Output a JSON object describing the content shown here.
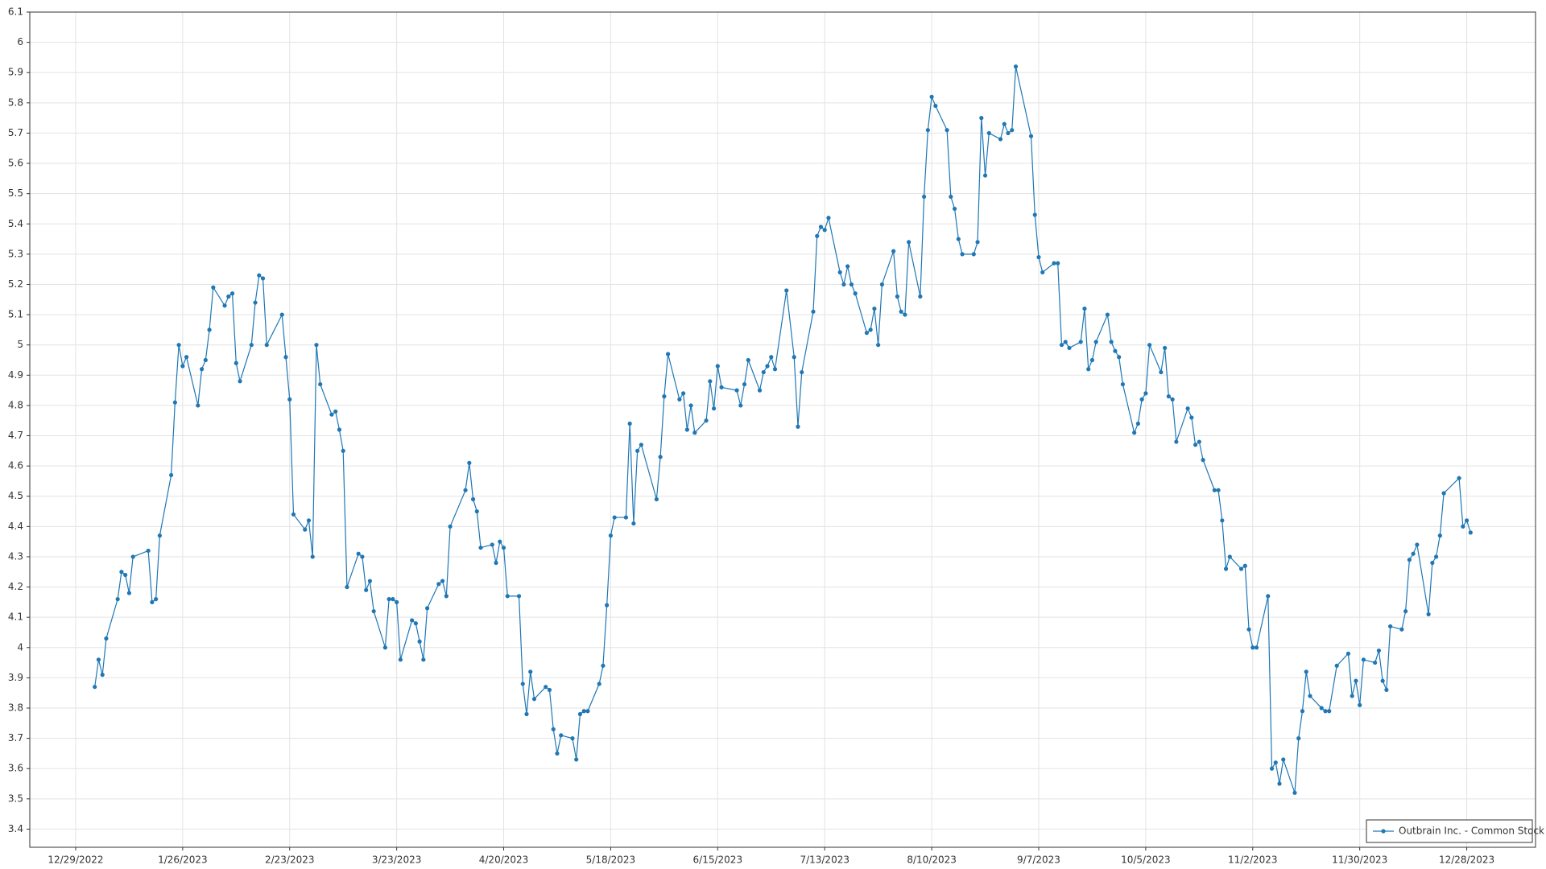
{
  "chart_data": {
    "type": "line",
    "x": [
      "2023-01-03",
      "2023-01-04",
      "2023-01-05",
      "2023-01-06",
      "2023-01-09",
      "2023-01-10",
      "2023-01-11",
      "2023-01-12",
      "2023-01-13",
      "2023-01-17",
      "2023-01-18",
      "2023-01-19",
      "2023-01-20",
      "2023-01-23",
      "2023-01-24",
      "2023-01-25",
      "2023-01-26",
      "2023-01-27",
      "2023-01-30",
      "2023-01-31",
      "2023-02-01",
      "2023-02-02",
      "2023-02-03",
      "2023-02-06",
      "2023-02-07",
      "2023-02-08",
      "2023-02-09",
      "2023-02-10",
      "2023-02-13",
      "2023-02-14",
      "2023-02-15",
      "2023-02-16",
      "2023-02-17",
      "2023-02-21",
      "2023-02-22",
      "2023-02-23",
      "2023-02-24",
      "2023-02-27",
      "2023-02-28",
      "2023-03-01",
      "2023-03-02",
      "2023-03-03",
      "2023-03-06",
      "2023-03-07",
      "2023-03-08",
      "2023-03-09",
      "2023-03-10",
      "2023-03-13",
      "2023-03-14",
      "2023-03-15",
      "2023-03-16",
      "2023-03-17",
      "2023-03-20",
      "2023-03-21",
      "2023-03-22",
      "2023-03-23",
      "2023-03-24",
      "2023-03-27",
      "2023-03-28",
      "2023-03-29",
      "2023-03-30",
      "2023-03-31",
      "2023-04-03",
      "2023-04-04",
      "2023-04-05",
      "2023-04-06",
      "2023-04-10",
      "2023-04-11",
      "2023-04-12",
      "2023-04-13",
      "2023-04-14",
      "2023-04-17",
      "2023-04-18",
      "2023-04-19",
      "2023-04-20",
      "2023-04-21",
      "2023-04-24",
      "2023-04-25",
      "2023-04-26",
      "2023-04-27",
      "2023-04-28",
      "2023-05-01",
      "2023-05-02",
      "2023-05-03",
      "2023-05-04",
      "2023-05-05",
      "2023-05-08",
      "2023-05-09",
      "2023-05-10",
      "2023-05-11",
      "2023-05-12",
      "2023-05-15",
      "2023-05-16",
      "2023-05-17",
      "2023-05-18",
      "2023-05-19",
      "2023-05-22",
      "2023-05-23",
      "2023-05-24",
      "2023-05-25",
      "2023-05-26",
      "2023-05-30",
      "2023-05-31",
      "2023-06-01",
      "2023-06-02",
      "2023-06-05",
      "2023-06-06",
      "2023-06-07",
      "2023-06-08",
      "2023-06-09",
      "2023-06-12",
      "2023-06-13",
      "2023-06-14",
      "2023-06-15",
      "2023-06-16",
      "2023-06-20",
      "2023-06-21",
      "2023-06-22",
      "2023-06-23",
      "2023-06-26",
      "2023-06-27",
      "2023-06-28",
      "2023-06-29",
      "2023-06-30",
      "2023-07-03",
      "2023-07-05",
      "2023-07-06",
      "2023-07-07",
      "2023-07-10",
      "2023-07-11",
      "2023-07-12",
      "2023-07-13",
      "2023-07-14",
      "2023-07-17",
      "2023-07-18",
      "2023-07-19",
      "2023-07-20",
      "2023-07-21",
      "2023-07-24",
      "2023-07-25",
      "2023-07-26",
      "2023-07-27",
      "2023-07-28",
      "2023-07-31",
      "2023-08-01",
      "2023-08-02",
      "2023-08-03",
      "2023-08-04",
      "2023-08-07",
      "2023-08-08",
      "2023-08-09",
      "2023-08-10",
      "2023-08-11",
      "2023-08-14",
      "2023-08-15",
      "2023-08-16",
      "2023-08-17",
      "2023-08-18",
      "2023-08-21",
      "2023-08-22",
      "2023-08-23",
      "2023-08-24",
      "2023-08-25",
      "2023-08-28",
      "2023-08-29",
      "2023-08-30",
      "2023-08-31",
      "2023-09-01",
      "2023-09-05",
      "2023-09-06",
      "2023-09-07",
      "2023-09-08",
      "2023-09-11",
      "2023-09-12",
      "2023-09-13",
      "2023-09-14",
      "2023-09-15",
      "2023-09-18",
      "2023-09-19",
      "2023-09-20",
      "2023-09-21",
      "2023-09-22",
      "2023-09-25",
      "2023-09-26",
      "2023-09-27",
      "2023-09-28",
      "2023-09-29",
      "2023-10-02",
      "2023-10-03",
      "2023-10-04",
      "2023-10-05",
      "2023-10-06",
      "2023-10-09",
      "2023-10-10",
      "2023-10-11",
      "2023-10-12",
      "2023-10-13",
      "2023-10-16",
      "2023-10-17",
      "2023-10-18",
      "2023-10-19",
      "2023-10-20",
      "2023-10-23",
      "2023-10-24",
      "2023-10-25",
      "2023-10-26",
      "2023-10-27",
      "2023-10-30",
      "2023-10-31",
      "2023-11-01",
      "2023-11-02",
      "2023-11-03",
      "2023-11-06",
      "2023-11-07",
      "2023-11-08",
      "2023-11-09",
      "2023-11-10",
      "2023-11-13",
      "2023-11-14",
      "2023-11-15",
      "2023-11-16",
      "2023-11-17",
      "2023-11-20",
      "2023-11-21",
      "2023-11-22",
      "2023-11-24",
      "2023-11-27",
      "2023-11-28",
      "2023-11-29",
      "2023-11-30",
      "2023-12-01",
      "2023-12-04",
      "2023-12-05",
      "2023-12-06",
      "2023-12-07",
      "2023-12-08",
      "2023-12-11",
      "2023-12-12",
      "2023-12-13",
      "2023-12-14",
      "2023-12-15",
      "2023-12-18",
      "2023-12-19",
      "2023-12-20",
      "2023-12-21",
      "2023-12-22",
      "2023-12-26",
      "2023-12-27",
      "2023-12-28",
      "2023-12-29"
    ],
    "series": [
      {
        "name": "Outbrain Inc. - Common Stock",
        "color": "#1f77b4",
        "values": [
          3.87,
          3.96,
          3.91,
          4.03,
          4.16,
          4.25,
          4.24,
          4.18,
          4.3,
          4.32,
          4.15,
          4.16,
          4.37,
          4.57,
          4.81,
          5.0,
          4.93,
          4.96,
          4.8,
          4.92,
          4.95,
          5.05,
          5.19,
          5.13,
          5.16,
          5.17,
          4.94,
          4.88,
          5.0,
          5.14,
          5.23,
          5.22,
          5.0,
          5.1,
          4.96,
          4.82,
          4.44,
          4.39,
          4.42,
          4.3,
          5.0,
          4.87,
          4.77,
          4.78,
          4.72,
          4.65,
          4.2,
          4.31,
          4.3,
          4.19,
          4.22,
          4.12,
          4.0,
          4.16,
          4.16,
          4.15,
          3.96,
          4.09,
          4.08,
          4.02,
          3.96,
          4.13,
          4.21,
          4.22,
          4.17,
          4.4,
          4.52,
          4.61,
          4.49,
          4.45,
          4.33,
          4.34,
          4.28,
          4.35,
          4.33,
          4.17,
          4.17,
          3.88,
          3.78,
          3.92,
          3.83,
          3.87,
          3.86,
          3.73,
          3.65,
          3.71,
          3.7,
          3.63,
          3.78,
          3.79,
          3.79,
          3.88,
          3.94,
          4.14,
          4.37,
          4.43,
          4.43,
          4.74,
          4.41,
          4.65,
          4.67,
          4.49,
          4.63,
          4.83,
          4.97,
          4.82,
          4.84,
          4.72,
          4.8,
          4.71,
          4.75,
          4.88,
          4.79,
          4.93,
          4.86,
          4.85,
          4.8,
          4.87,
          4.95,
          4.85,
          4.91,
          4.93,
          4.96,
          4.92,
          5.18,
          4.96,
          4.73,
          4.91,
          5.11,
          5.36,
          5.39,
          5.38,
          5.42,
          5.24,
          5.2,
          5.26,
          5.2,
          5.17,
          5.04,
          5.05,
          5.12,
          5.0,
          5.2,
          5.31,
          5.16,
          5.11,
          5.1,
          5.34,
          5.16,
          5.49,
          5.71,
          5.82,
          5.79,
          5.71,
          5.49,
          5.45,
          5.35,
          5.3,
          5.3,
          5.34,
          5.75,
          5.56,
          5.7,
          5.68,
          5.73,
          5.7,
          5.71,
          5.92,
          5.69,
          5.43,
          5.29,
          5.24,
          5.27,
          5.27,
          5.0,
          5.01,
          4.99,
          5.01,
          5.12,
          4.92,
          4.95,
          5.01,
          5.1,
          5.01,
          4.98,
          4.96,
          4.87,
          4.71,
          4.74,
          4.82,
          4.84,
          5.0,
          4.91,
          4.99,
          4.83,
          4.82,
          4.68,
          4.79,
          4.76,
          4.67,
          4.68,
          4.62,
          4.52,
          4.52,
          4.42,
          4.26,
          4.3,
          4.26,
          4.27,
          4.06,
          4.0,
          4.0,
          4.17,
          3.6,
          3.62,
          3.55,
          3.63,
          3.52,
          3.7,
          3.79,
          3.92,
          3.84,
          3.8,
          3.79,
          3.79,
          3.94,
          3.98,
          3.84,
          3.89,
          3.81,
          3.96,
          3.95,
          3.99,
          3.89,
          3.86,
          4.07,
          4.06,
          4.12,
          4.29,
          4.31,
          4.34,
          4.11,
          4.28,
          4.3,
          4.37,
          4.51,
          4.56,
          4.4,
          4.42,
          4.38
        ]
      }
    ],
    "xlim": [
      "2022-12-17",
      "2024-01-15"
    ],
    "xticks": [
      {
        "value": "2022-12-29",
        "label": "12/29/2022"
      },
      {
        "value": "2023-01-26",
        "label": "1/26/2023"
      },
      {
        "value": "2023-02-23",
        "label": "2/23/2023"
      },
      {
        "value": "2023-03-23",
        "label": "3/23/2023"
      },
      {
        "value": "2023-04-20",
        "label": "4/20/2023"
      },
      {
        "value": "2023-05-18",
        "label": "5/18/2023"
      },
      {
        "value": "2023-06-15",
        "label": "6/15/2023"
      },
      {
        "value": "2023-07-13",
        "label": "7/13/2023"
      },
      {
        "value": "2023-08-10",
        "label": "8/10/2023"
      },
      {
        "value": "2023-09-07",
        "label": "9/7/2023"
      },
      {
        "value": "2023-10-05",
        "label": "10/5/2023"
      },
      {
        "value": "2023-11-02",
        "label": "11/2/2023"
      },
      {
        "value": "2023-11-30",
        "label": "11/30/2023"
      },
      {
        "value": "2023-12-28",
        "label": "12/28/2023"
      }
    ],
    "ylim": [
      3.34,
      6.1
    ],
    "yticks": [
      3.4,
      3.5,
      3.6,
      3.7,
      3.8,
      3.9,
      4,
      4.1,
      4.2,
      4.3,
      4.4,
      4.5,
      4.6,
      4.7,
      4.8,
      4.9,
      5,
      5.1,
      5.2,
      5.3,
      5.4,
      5.5,
      5.6,
      5.7,
      5.8,
      5.9,
      6,
      6.1
    ],
    "grid": true,
    "markers": true,
    "legend": "lower right"
  }
}
